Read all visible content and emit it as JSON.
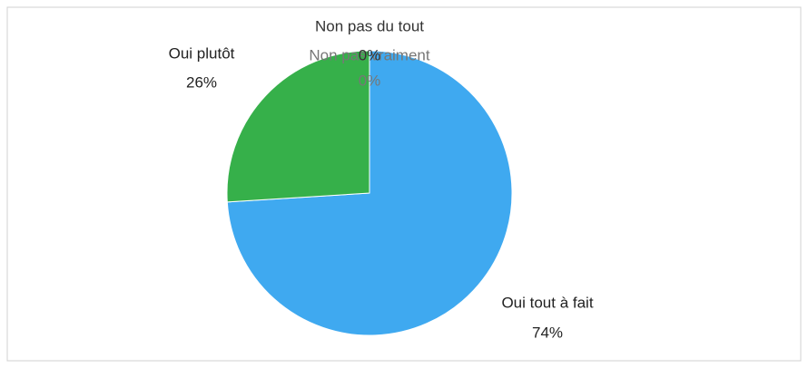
{
  "chart_data": {
    "type": "pie",
    "categories": [
      "Oui tout à fait",
      "Oui plutôt",
      "Non pas vraiment",
      "Non pas du tout"
    ],
    "values": [
      74,
      26,
      0,
      0
    ],
    "value_labels": [
      "74%",
      "26%",
      "0%",
      "0%"
    ],
    "colors": [
      "#3fa9f0",
      "#36b04a",
      "#e8a33a",
      "#c0504d"
    ]
  }
}
